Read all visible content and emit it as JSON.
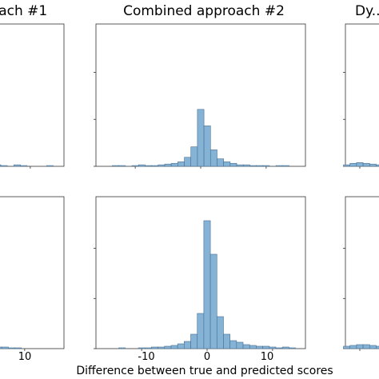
{
  "figure": {
    "titles": [
      "...ach #1",
      "Combined approach #2",
      "Dy..."
    ],
    "xlabel": "Difference between true and predicted scores",
    "x_tick_labels": [
      "-10",
      "0",
      "10"
    ],
    "bar_color": "#85b3d6",
    "edge_color": "#4a6f8f"
  },
  "chart_data": [
    {
      "type": "bar",
      "panel": "top-left (cropped)",
      "title": "...ach #1",
      "bin_width": 1,
      "x": [
        -5,
        -4,
        -3,
        -2,
        -1,
        0,
        1,
        2,
        3,
        4,
        5,
        6,
        8,
        9,
        13
      ],
      "values": [
        3,
        4,
        6,
        10,
        22,
        54,
        28,
        12,
        7,
        4,
        2,
        1,
        2,
        1,
        1
      ],
      "ylim": [
        0,
        190
      ]
    },
    {
      "type": "bar",
      "panel": "top-middle",
      "title": "Combined approach #2",
      "bin_width": 1,
      "x": [
        -13,
        -12,
        -11,
        -10,
        -9,
        -8,
        -7,
        -6,
        -5,
        -4,
        -3,
        -2,
        -1,
        0,
        1,
        2,
        3,
        4,
        5,
        6,
        7,
        8,
        9,
        10,
        12,
        13
      ],
      "values": [
        1,
        1,
        0,
        1,
        2,
        1,
        1,
        2,
        3,
        4,
        6,
        12,
        26,
        76,
        54,
        22,
        10,
        6,
        4,
        2,
        2,
        1,
        1,
        1,
        1,
        1
      ],
      "xlim": [
        -16,
        16
      ],
      "ylim": [
        0,
        190
      ]
    },
    {
      "type": "bar",
      "panel": "top-right (cropped)",
      "title": "Dy...",
      "bin_width": 1,
      "x": [
        -2,
        -1,
        0,
        1,
        2,
        3,
        4,
        5
      ],
      "values": [
        2,
        4,
        5,
        4,
        3,
        2,
        2,
        1
      ],
      "ylim": [
        0,
        190
      ]
    },
    {
      "type": "bar",
      "panel": "bottom-left (cropped)",
      "title": "",
      "bin_width": 1,
      "x": [
        -5,
        -4,
        -3,
        -2,
        -1,
        0,
        1,
        2,
        3,
        4,
        5,
        6,
        7,
        8,
        9
      ],
      "values": [
        4,
        5,
        8,
        14,
        30,
        60,
        30,
        14,
        8,
        5,
        3,
        2,
        2,
        1,
        1
      ],
      "ylim": [
        0,
        190
      ]
    },
    {
      "type": "bar",
      "panel": "bottom-middle",
      "title": "",
      "bin_width": 1,
      "x": [
        -13,
        -10,
        -9,
        -8,
        -7,
        -6,
        -5,
        -4,
        -3,
        -2,
        -1,
        0,
        1,
        2,
        3,
        4,
        5,
        6,
        7,
        8,
        9,
        10,
        11,
        12,
        13
      ],
      "values": [
        1,
        1,
        1,
        2,
        2,
        3,
        4,
        6,
        9,
        18,
        44,
        160,
        118,
        40,
        18,
        10,
        8,
        5,
        4,
        3,
        3,
        2,
        1,
        2,
        1
      ],
      "xlim": [
        -16,
        16
      ],
      "ylim": [
        0,
        190
      ]
    },
    {
      "type": "bar",
      "panel": "bottom-right (cropped)",
      "title": "",
      "bin_width": 1,
      "x": [
        -2,
        -1,
        0,
        1,
        2,
        3,
        4,
        5
      ],
      "values": [
        3,
        4,
        5,
        5,
        4,
        3,
        2,
        1
      ],
      "ylim": [
        0,
        190
      ]
    }
  ]
}
